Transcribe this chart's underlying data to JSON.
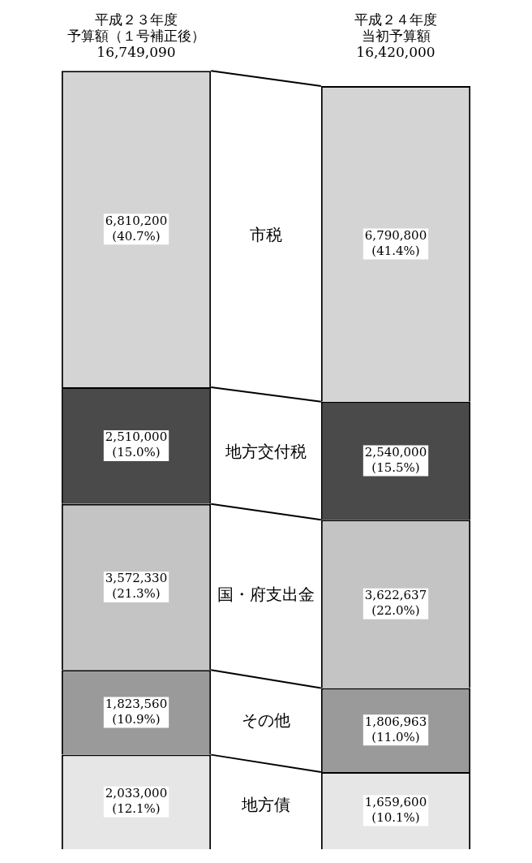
{
  "chart_data": {
    "type": "bar",
    "stacked": true,
    "categories": [
      "平成２３年度予算額（１号補正後）",
      "平成２４年度当初予算額"
    ],
    "totals": [
      "16,749,090",
      "16,420,000"
    ],
    "legend": false,
    "grid": false,
    "series": [
      {
        "name": "地方債",
        "color": "#e6e6e6",
        "values": [
          2033000,
          1659600
        ],
        "value_labels": [
          "2,033,000\n(12.1%)",
          "1,659,600\n(10.1%)"
        ]
      },
      {
        "name": "その他",
        "color": "#9a9a9a",
        "values": [
          1823560,
          1806963
        ],
        "value_labels": [
          "1,823,560\n(10.9%)",
          "1,806,963\n(11.0%)"
        ]
      },
      {
        "name": "国・府支出金",
        "color": "#c4c4c4",
        "values": [
          3572330,
          3622637
        ],
        "value_labels": [
          "3,572,330\n(21.3%)",
          "3,622,637\n(22.0%)"
        ]
      },
      {
        "name": "地方交付税",
        "color": "#4a4a4a",
        "values": [
          2510000,
          2540000
        ],
        "value_labels": [
          "2,510,000\n(15.0%)",
          "2,540,000\n(15.5%)"
        ]
      },
      {
        "name": "市税",
        "color": "#d4d4d4",
        "values": [
          6810200,
          6790800
        ],
        "value_labels": [
          "6,810,200\n(40.7%)",
          "6,790,800\n(41.4%)"
        ]
      }
    ]
  }
}
